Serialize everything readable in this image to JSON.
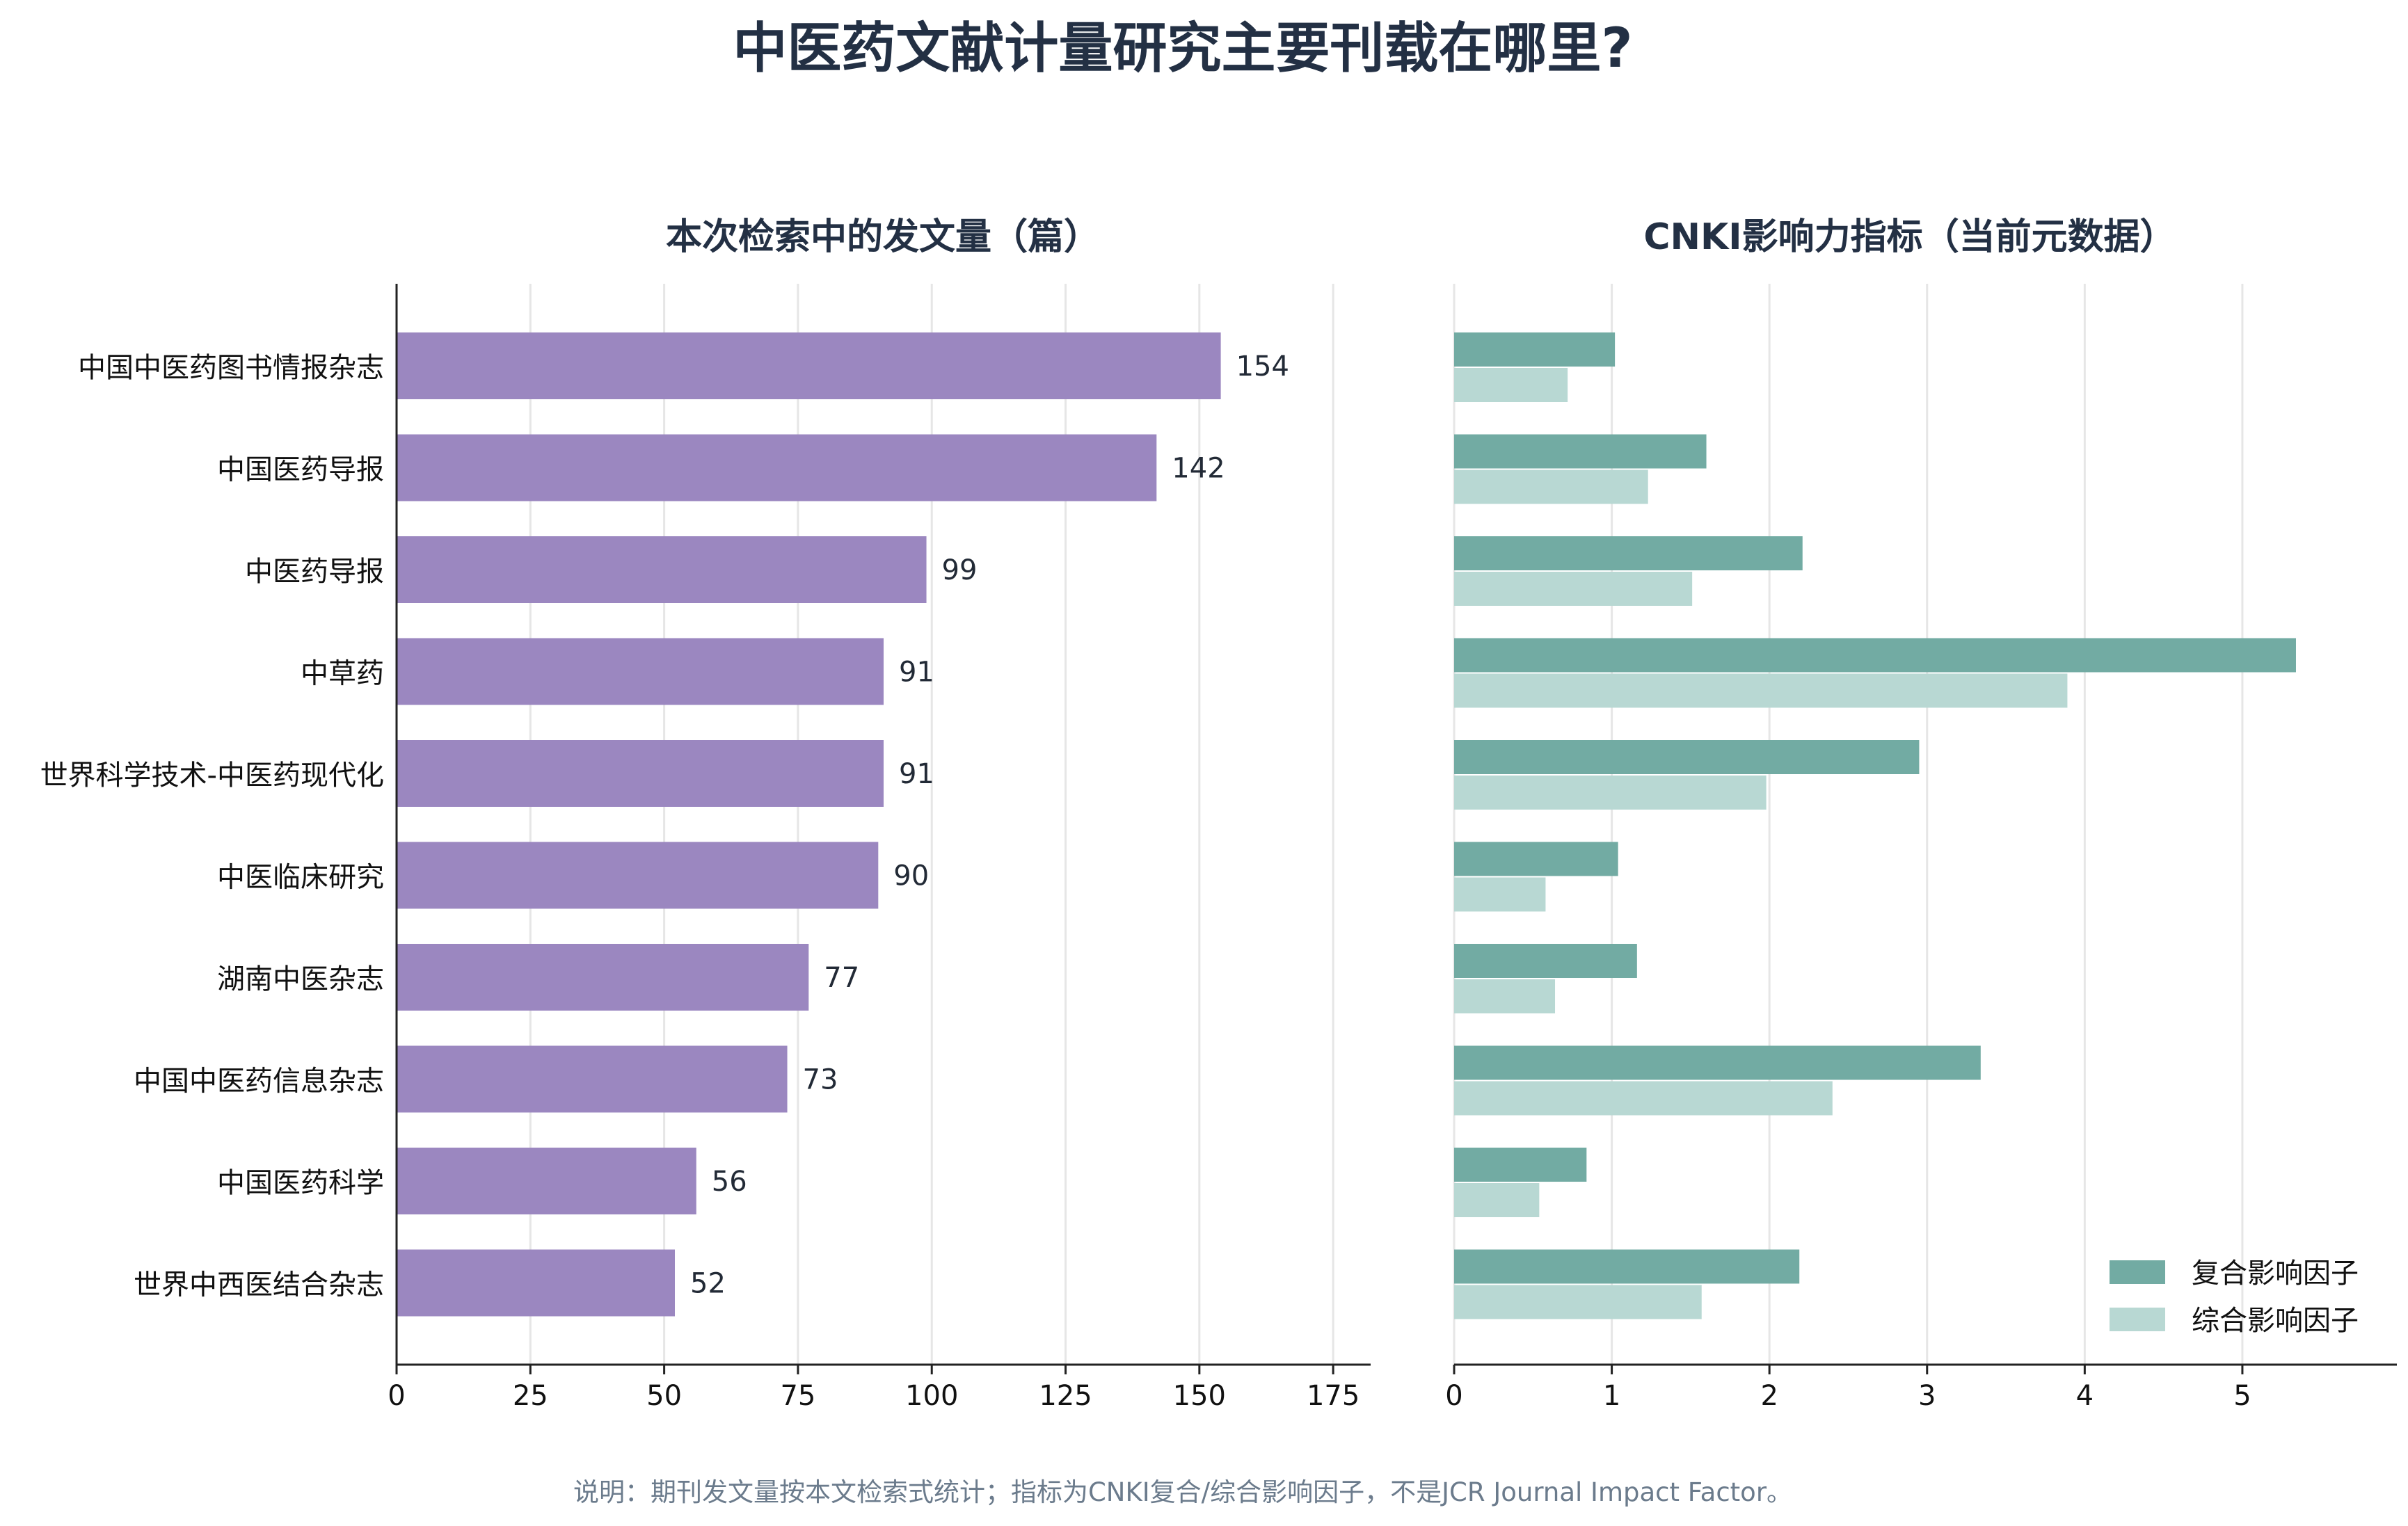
{
  "title": "中医药文献计量研究主要刊载在哪里?",
  "footnote": "说明：期刊发文量按本文检索式统计；指标为CNKI复合/综合影响因子，不是JCR Journal Impact Factor。",
  "colors": {
    "count_bar": "#9b87c0",
    "composite": "#72aba3",
    "comprehensive": "#b8d8d3",
    "title": "#233044",
    "grid": "#e6e6e6"
  },
  "chart_data": [
    {
      "type": "bar",
      "orientation": "horizontal",
      "title": "本次检索中的发文量（篇）",
      "categories": [
        "中国中医药图书情报杂志",
        "中国医药导报",
        "中医药导报",
        "中草药",
        "世界科学技术-中医药现代化",
        "中医临床研究",
        "湖南中医杂志",
        "中国中医药信息杂志",
        "中国医药科学",
        "世界中西医结合杂志"
      ],
      "values": [
        154,
        142,
        99,
        91,
        91,
        90,
        77,
        73,
        56,
        52
      ],
      "xlim": [
        0,
        182
      ],
      "xticks": [
        "0",
        "25",
        "50",
        "75",
        "100",
        "125",
        "150",
        "175"
      ],
      "grid": "vertical"
    },
    {
      "type": "bar",
      "orientation": "horizontal",
      "title": "CNKI影响力指标（当前元数据）",
      "categories": [
        "中国中医药图书情报杂志",
        "中国医药导报",
        "中医药导报",
        "中草药",
        "世界科学技术-中医药现代化",
        "中医临床研究",
        "湖南中医杂志",
        "中国中医药信息杂志",
        "中国医药科学",
        "世界中西医结合杂志"
      ],
      "series": [
        {
          "name": "复合影响因子",
          "values": [
            1.02,
            1.6,
            2.21,
            5.34,
            2.95,
            1.04,
            1.16,
            3.34,
            0.84,
            2.19
          ]
        },
        {
          "name": "综合影响因子",
          "values": [
            0.72,
            1.23,
            1.51,
            3.89,
            1.98,
            0.58,
            0.64,
            2.4,
            0.54,
            1.57
          ]
        }
      ],
      "xlim": [
        0,
        5.98
      ],
      "xticks": [
        "0",
        "1",
        "2",
        "3",
        "4",
        "5"
      ],
      "legend": "bottom-right",
      "grid": "vertical"
    }
  ]
}
